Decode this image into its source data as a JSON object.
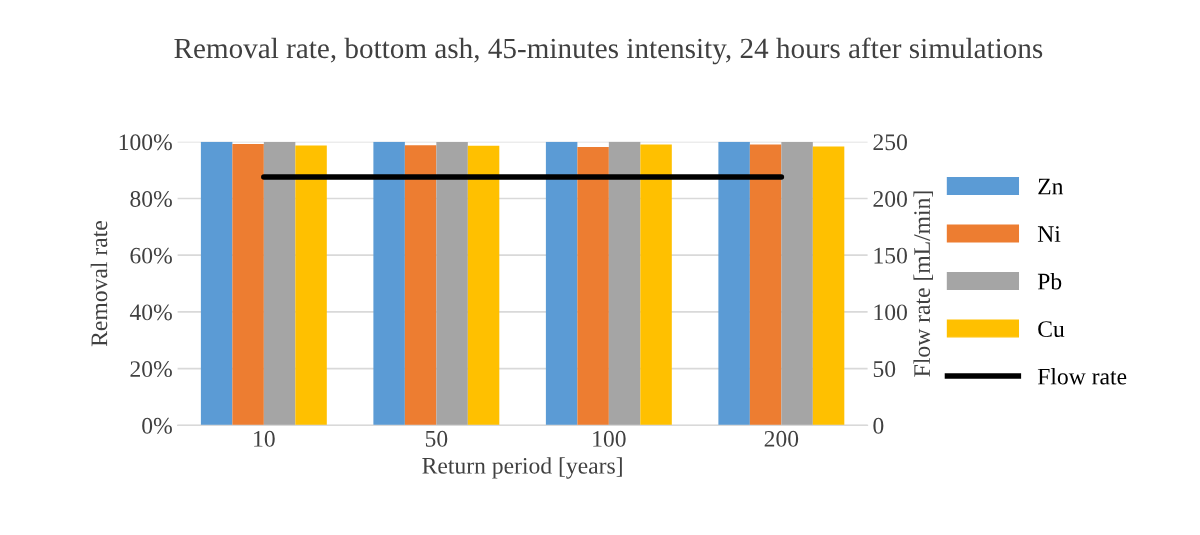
{
  "chart_data": {
    "type": "bar",
    "title": "Removal rate, bottom ash, 45-minutes intensity, 24 hours after simulations",
    "xlabel": "Return period [years]",
    "ylabel": "Removal rate",
    "y2label": "Flow rate [mL/min]",
    "categories": [
      "10",
      "50",
      "100",
      "200"
    ],
    "series": [
      {
        "name": "Zn",
        "color": "#5b9bd5",
        "values": [
          100,
          100,
          100,
          100
        ]
      },
      {
        "name": "Ni",
        "color": "#ed7d31",
        "values": [
          99.2,
          98.8,
          98.2,
          99.0
        ]
      },
      {
        "name": "Pb",
        "color": "#a5a5a5",
        "values": [
          99.9,
          99.9,
          100,
          99.9
        ]
      },
      {
        "name": "Cu",
        "color": "#ffc000",
        "values": [
          98.7,
          98.6,
          99.0,
          98.3
        ]
      },
      {
        "name": "Flow rate",
        "type": "line",
        "axis": "y2",
        "color": "#000000",
        "values": [
          219,
          219,
          219,
          219
        ]
      }
    ],
    "ylim": [
      0,
      100
    ],
    "yticks": [
      {
        "value": 0,
        "label": "0%"
      },
      {
        "value": 20,
        "label": "20%"
      },
      {
        "value": 40,
        "label": "40%"
      },
      {
        "value": 60,
        "label": "60%"
      },
      {
        "value": 80,
        "label": "80%"
      },
      {
        "value": 100,
        "label": "100%"
      }
    ],
    "y2lim": [
      0,
      250
    ],
    "y2ticks": [
      0,
      50,
      100,
      150,
      200,
      250
    ],
    "grid": "y",
    "legend": "right",
    "marker": "none"
  }
}
